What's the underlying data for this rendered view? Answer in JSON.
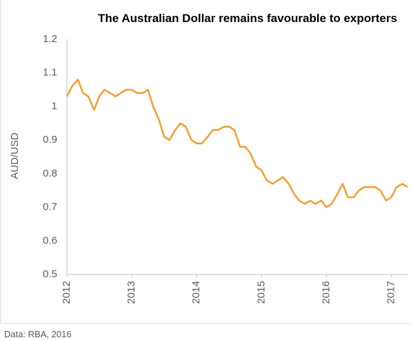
{
  "chart_data": {
    "type": "line",
    "title": "The Australian Dollar remains favourable to exporters",
    "y_label": "AUD/USD",
    "source": "Data: RBA, 2016",
    "color": "#f39c2c",
    "x": [
      2012.0,
      2012.08,
      2012.17,
      2012.25,
      2012.33,
      2012.42,
      2012.5,
      2012.58,
      2012.67,
      2012.75,
      2012.83,
      2012.92,
      2013.0,
      2013.08,
      2013.17,
      2013.25,
      2013.33,
      2013.42,
      2013.5,
      2013.58,
      2013.67,
      2013.75,
      2013.83,
      2013.92,
      2014.0,
      2014.08,
      2014.17,
      2014.25,
      2014.33,
      2014.42,
      2014.5,
      2014.58,
      2014.67,
      2014.75,
      2014.83,
      2014.92,
      2015.0,
      2015.08,
      2015.17,
      2015.25,
      2015.33,
      2015.42,
      2015.5,
      2015.58,
      2015.67,
      2015.75,
      2015.83,
      2015.92,
      2016.0,
      2016.08,
      2016.17,
      2016.25,
      2016.33,
      2016.42,
      2016.5,
      2016.58,
      2016.67,
      2016.75,
      2016.83,
      2016.92,
      2017.0,
      2017.08,
      2017.17,
      2017.25
    ],
    "values": [
      1.03,
      1.06,
      1.08,
      1.04,
      1.03,
      0.99,
      1.03,
      1.05,
      1.04,
      1.03,
      1.04,
      1.05,
      1.05,
      1.04,
      1.04,
      1.05,
      1.0,
      0.96,
      0.91,
      0.9,
      0.93,
      0.95,
      0.94,
      0.9,
      0.89,
      0.89,
      0.91,
      0.93,
      0.93,
      0.94,
      0.94,
      0.93,
      0.88,
      0.88,
      0.86,
      0.82,
      0.81,
      0.78,
      0.77,
      0.78,
      0.79,
      0.77,
      0.74,
      0.72,
      0.71,
      0.72,
      0.71,
      0.72,
      0.7,
      0.71,
      0.74,
      0.77,
      0.73,
      0.73,
      0.75,
      0.76,
      0.76,
      0.76,
      0.75,
      0.72,
      0.73,
      0.76,
      0.77,
      0.76
    ],
    "xlim": [
      2012,
      2017.25
    ],
    "xticks": [
      2012,
      2013,
      2014,
      2015,
      2016,
      2017
    ],
    "ylim": [
      0.5,
      1.2
    ],
    "yticks": [
      0.5,
      0.6,
      0.7,
      0.8,
      0.9,
      1,
      1.1,
      1.2
    ]
  }
}
